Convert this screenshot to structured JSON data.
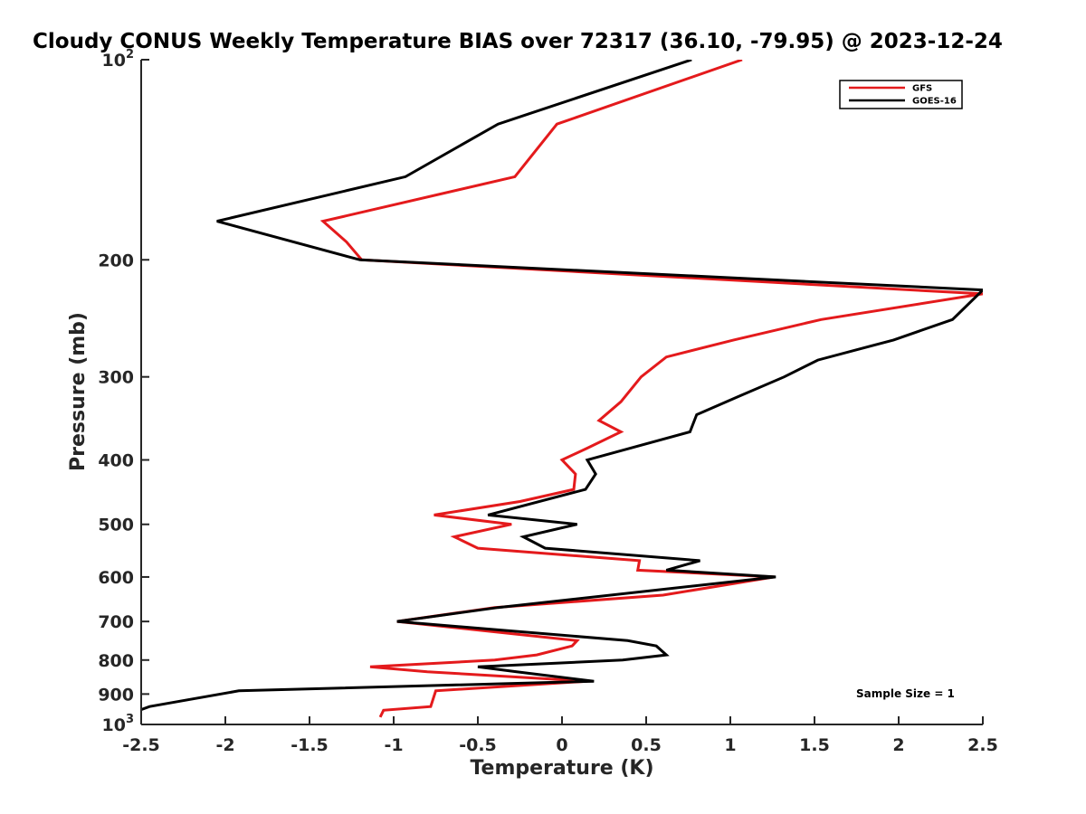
{
  "chart_data": {
    "type": "line",
    "title": "Cloudy CONUS Weekly Temperature BIAS over 72317 (36.10, -79.95) @ 2023-12-24",
    "xlabel": "Temperature (K)",
    "ylabel": "Pressure (mb)",
    "xlim": [
      -2.5,
      2.5
    ],
    "ylim": [
      100,
      1000
    ],
    "y_scale": "log",
    "y_reversed": true,
    "x_ticks": [
      -2.5,
      -2,
      -1.5,
      -1,
      -0.5,
      0,
      0.5,
      1,
      1.5,
      2,
      2.5
    ],
    "x_tick_labels": [
      "-2.5",
      "-2",
      "-1.5",
      "-1",
      "-0.5",
      "0",
      "0.5",
      "1",
      "1.5",
      "2",
      "2.5"
    ],
    "y_ticks": [
      {
        "value": 100,
        "base": "10",
        "exp": "2"
      },
      {
        "value": 200,
        "label": "200"
      },
      {
        "value": 300,
        "label": "300"
      },
      {
        "value": 400,
        "label": "400"
      },
      {
        "value": 500,
        "label": "500"
      },
      {
        "value": 600,
        "label": "600"
      },
      {
        "value": 700,
        "label": "700"
      },
      {
        "value": 800,
        "label": "800"
      },
      {
        "value": 900,
        "label": "900"
      },
      {
        "value": 1000,
        "base": "10",
        "exp": "3"
      }
    ],
    "legend_position": "top-right",
    "grid": false,
    "series": [
      {
        "name": "GFS",
        "color": "#e41a1c",
        "points": [
          [
            1.07,
            100
          ],
          [
            -0.03,
            125
          ],
          [
            -0.28,
            150
          ],
          [
            -1.42,
            175
          ],
          [
            -1.28,
            188
          ],
          [
            -1.19,
            200
          ],
          [
            2.5,
            225
          ],
          [
            1.54,
            246
          ],
          [
            1.02,
            264
          ],
          [
            0.62,
            280
          ],
          [
            0.47,
            300
          ],
          [
            0.35,
            327
          ],
          [
            0.22,
            349
          ],
          [
            0.35,
            363
          ],
          [
            0.15,
            384
          ],
          [
            0.0,
            400
          ],
          [
            0.08,
            420
          ],
          [
            0.07,
            443
          ],
          [
            -0.25,
            462
          ],
          [
            -0.76,
            484
          ],
          [
            -0.3,
            500
          ],
          [
            -0.64,
            522
          ],
          [
            -0.5,
            543
          ],
          [
            0.46,
            567
          ],
          [
            0.45,
            586
          ],
          [
            1.26,
            600
          ],
          [
            0.6,
            639
          ],
          [
            -0.4,
            667
          ],
          [
            -0.98,
            700
          ],
          [
            0.09,
            748
          ],
          [
            0.06,
            762
          ],
          [
            -0.15,
            786
          ],
          [
            -0.4,
            800
          ],
          [
            -1.14,
            819
          ],
          [
            -0.8,
            833
          ],
          [
            0.15,
            861
          ],
          [
            -0.75,
            890
          ],
          [
            -0.78,
            940
          ],
          [
            -1.06,
            952
          ],
          [
            -1.08,
            975
          ]
        ]
      },
      {
        "name": "GOES-16",
        "color": "#000000",
        "points": [
          [
            0.77,
            100
          ],
          [
            -0.38,
            125
          ],
          [
            -0.93,
            150
          ],
          [
            -2.05,
            175
          ],
          [
            -1.2,
            200
          ],
          [
            2.5,
            222
          ],
          [
            2.32,
            246
          ],
          [
            1.97,
            264
          ],
          [
            1.52,
            283
          ],
          [
            1.32,
            300
          ],
          [
            1.05,
            321
          ],
          [
            0.8,
            342
          ],
          [
            0.76,
            363
          ],
          [
            0.15,
            400
          ],
          [
            0.2,
            420
          ],
          [
            0.14,
            443
          ],
          [
            -0.44,
            484
          ],
          [
            0.09,
            500
          ],
          [
            -0.23,
            522
          ],
          [
            -0.1,
            543
          ],
          [
            0.82,
            567
          ],
          [
            0.62,
            586
          ],
          [
            1.27,
            600
          ],
          [
            -0.38,
            667
          ],
          [
            -0.98,
            700
          ],
          [
            0.39,
            748
          ],
          [
            0.56,
            762
          ],
          [
            0.62,
            786
          ],
          [
            0.36,
            800
          ],
          [
            -0.5,
            819
          ],
          [
            -0.27,
            833
          ],
          [
            0.19,
            861
          ],
          [
            -1.92,
            890
          ],
          [
            -2.45,
            940
          ],
          [
            -2.5,
            950
          ]
        ]
      }
    ],
    "annotation": "Sample Size = 1"
  }
}
